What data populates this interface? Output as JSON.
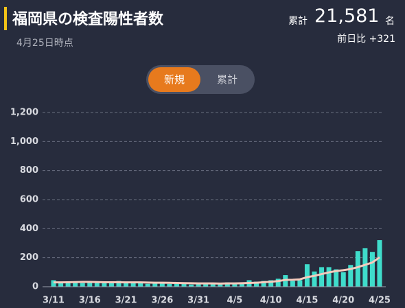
{
  "header": {
    "title": "福岡県の検査陽性者数",
    "date": "4月25日時点",
    "total_label": "累計",
    "total": "21,581",
    "total_unit": "名",
    "diff": "前日比 +321"
  },
  "toggle": {
    "options": [
      "新規",
      "累計"
    ]
  },
  "chart_data": {
    "type": "bar",
    "categories": [
      "3/11",
      null,
      null,
      null,
      null,
      "3/16",
      null,
      null,
      null,
      null,
      "3/21",
      null,
      null,
      null,
      null,
      "3/26",
      null,
      null,
      null,
      null,
      "3/31",
      null,
      null,
      null,
      null,
      "4/5",
      null,
      null,
      null,
      null,
      "4/10",
      null,
      null,
      null,
      null,
      "4/15",
      null,
      null,
      null,
      null,
      "4/20",
      null,
      null,
      null,
      null,
      "4/25"
    ],
    "series": [
      {
        "color": "#3fdccb",
        "values": [
          45,
          30,
          35,
          30,
          25,
          35,
          30,
          25,
          30,
          40,
          25,
          30,
          35,
          20,
          25,
          30,
          20,
          25,
          20,
          15,
          20,
          20,
          25,
          20,
          30,
          25,
          30,
          45,
          35,
          40,
          45,
          55,
          80,
          40,
          45,
          155,
          105,
          135,
          135,
          120,
          100,
          150,
          245,
          265,
          240,
          321
        ]
      },
      {
        "type": "line",
        "color": "#f6cbbd",
        "values": [
          30,
          30,
          31,
          32,
          33,
          33,
          32,
          31,
          31,
          31,
          30,
          30,
          30,
          29,
          28,
          28,
          27,
          26,
          25,
          24,
          23,
          23,
          23,
          22,
          23,
          23,
          24,
          26,
          28,
          31,
          34,
          39,
          47,
          48,
          51,
          66,
          75,
          87,
          99,
          108,
          114,
          122,
          135,
          151,
          167,
          203
        ]
      }
    ],
    "ylim": [
      0,
      1200
    ],
    "yticks": [
      0,
      200,
      400,
      600,
      800,
      {
        "value": 1000,
        "label": "1,000"
      },
      {
        "value": 1200,
        "label": "1,200"
      }
    ],
    "grid": true
  }
}
